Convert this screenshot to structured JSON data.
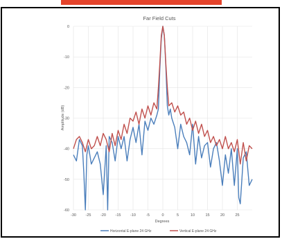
{
  "chart_data": {
    "type": "line",
    "title": "Far Field Cuts",
    "xlabel": "Degrees",
    "ylabel": "Amplitude (dB)",
    "xlim": [
      -30,
      30
    ],
    "ylim": [
      -60,
      0
    ],
    "xticks": [
      -30,
      -25,
      -20,
      -15,
      -10,
      -5,
      0,
      5,
      10,
      15,
      20,
      25
    ],
    "yticks": [
      0,
      -10,
      -20,
      -30,
      -40,
      -50,
      -60
    ],
    "grid": true,
    "legend_position": "bottom",
    "series": [
      {
        "name": "Horizontal E-plane 24 GHz",
        "color": "#4a7ebb",
        "x": [
          -30,
          -29,
          -28,
          -27,
          -26.5,
          -26,
          -25.5,
          -25,
          -24,
          -23,
          -22,
          -21,
          -20,
          -19,
          -18.5,
          -18,
          -17,
          -16,
          -15,
          -14,
          -13,
          -12,
          -11,
          -10,
          -9,
          -8,
          -7,
          -6,
          -5,
          -4,
          -3,
          -2,
          -1.5,
          -1,
          -0.5,
          0,
          0.5,
          1,
          1.5,
          2,
          2.5,
          3,
          4,
          5,
          6,
          7,
          8,
          9,
          10,
          11,
          12,
          13,
          14,
          15,
          16,
          17,
          18,
          19,
          20,
          21,
          22,
          23,
          24,
          25,
          25.5,
          26,
          27,
          28,
          29,
          30
        ],
        "y": [
          -42,
          -44,
          -37,
          -39,
          -48,
          -60,
          -42,
          -39,
          -45,
          -43,
          -41,
          -45,
          -55,
          -39,
          -60,
          -36,
          -38,
          -44,
          -36,
          -40,
          -36,
          -44,
          -37,
          -33,
          -38,
          -32,
          -42,
          -31,
          -34,
          -30,
          -32,
          -29,
          -27,
          -14,
          -4,
          0,
          -3,
          -13,
          -26,
          -29,
          -27,
          -30,
          -33,
          -40,
          -32,
          -36,
          -38,
          -42,
          -32,
          -45,
          -36,
          -43,
          -39,
          -38,
          -46,
          -40,
          -38,
          -44,
          -52,
          -42,
          -48,
          -40,
          -52,
          -40,
          -56,
          -58,
          -43,
          -41,
          -52,
          -50
        ]
      },
      {
        "name": "Vertical E-plane 24 GHz",
        "color": "#c0504d",
        "x": [
          -30,
          -29,
          -28,
          -27,
          -26,
          -25,
          -24,
          -23,
          -22,
          -21,
          -20,
          -19,
          -18,
          -17,
          -16,
          -15,
          -14,
          -13,
          -12,
          -11,
          -10,
          -9,
          -8,
          -7,
          -6,
          -5,
          -4,
          -3,
          -2,
          -1.5,
          -1,
          -0.5,
          0,
          0.5,
          1,
          1.5,
          2,
          3,
          4,
          5,
          6,
          7,
          8,
          9,
          10,
          11,
          12,
          13,
          14,
          15,
          16,
          17,
          18,
          19,
          20,
          21,
          22,
          23,
          24,
          25,
          26,
          27,
          28,
          29,
          30
        ],
        "y": [
          -40,
          -37,
          -36,
          -38,
          -41,
          -37,
          -40,
          -39,
          -36,
          -39,
          -35,
          -37,
          -41,
          -35,
          -39,
          -34,
          -37,
          -32,
          -35,
          -30,
          -31,
          -28,
          -32,
          -27,
          -30,
          -26,
          -29,
          -25,
          -27,
          -20,
          -12,
          -3,
          0,
          -3,
          -12,
          -20,
          -26,
          -25,
          -28,
          -26,
          -29,
          -28,
          -32,
          -30,
          -34,
          -31,
          -35,
          -32,
          -36,
          -34,
          -38,
          -36,
          -39,
          -37,
          -40,
          -36,
          -40,
          -38,
          -41,
          -37,
          -45,
          -38,
          -44,
          -39,
          -40
        ]
      }
    ]
  }
}
